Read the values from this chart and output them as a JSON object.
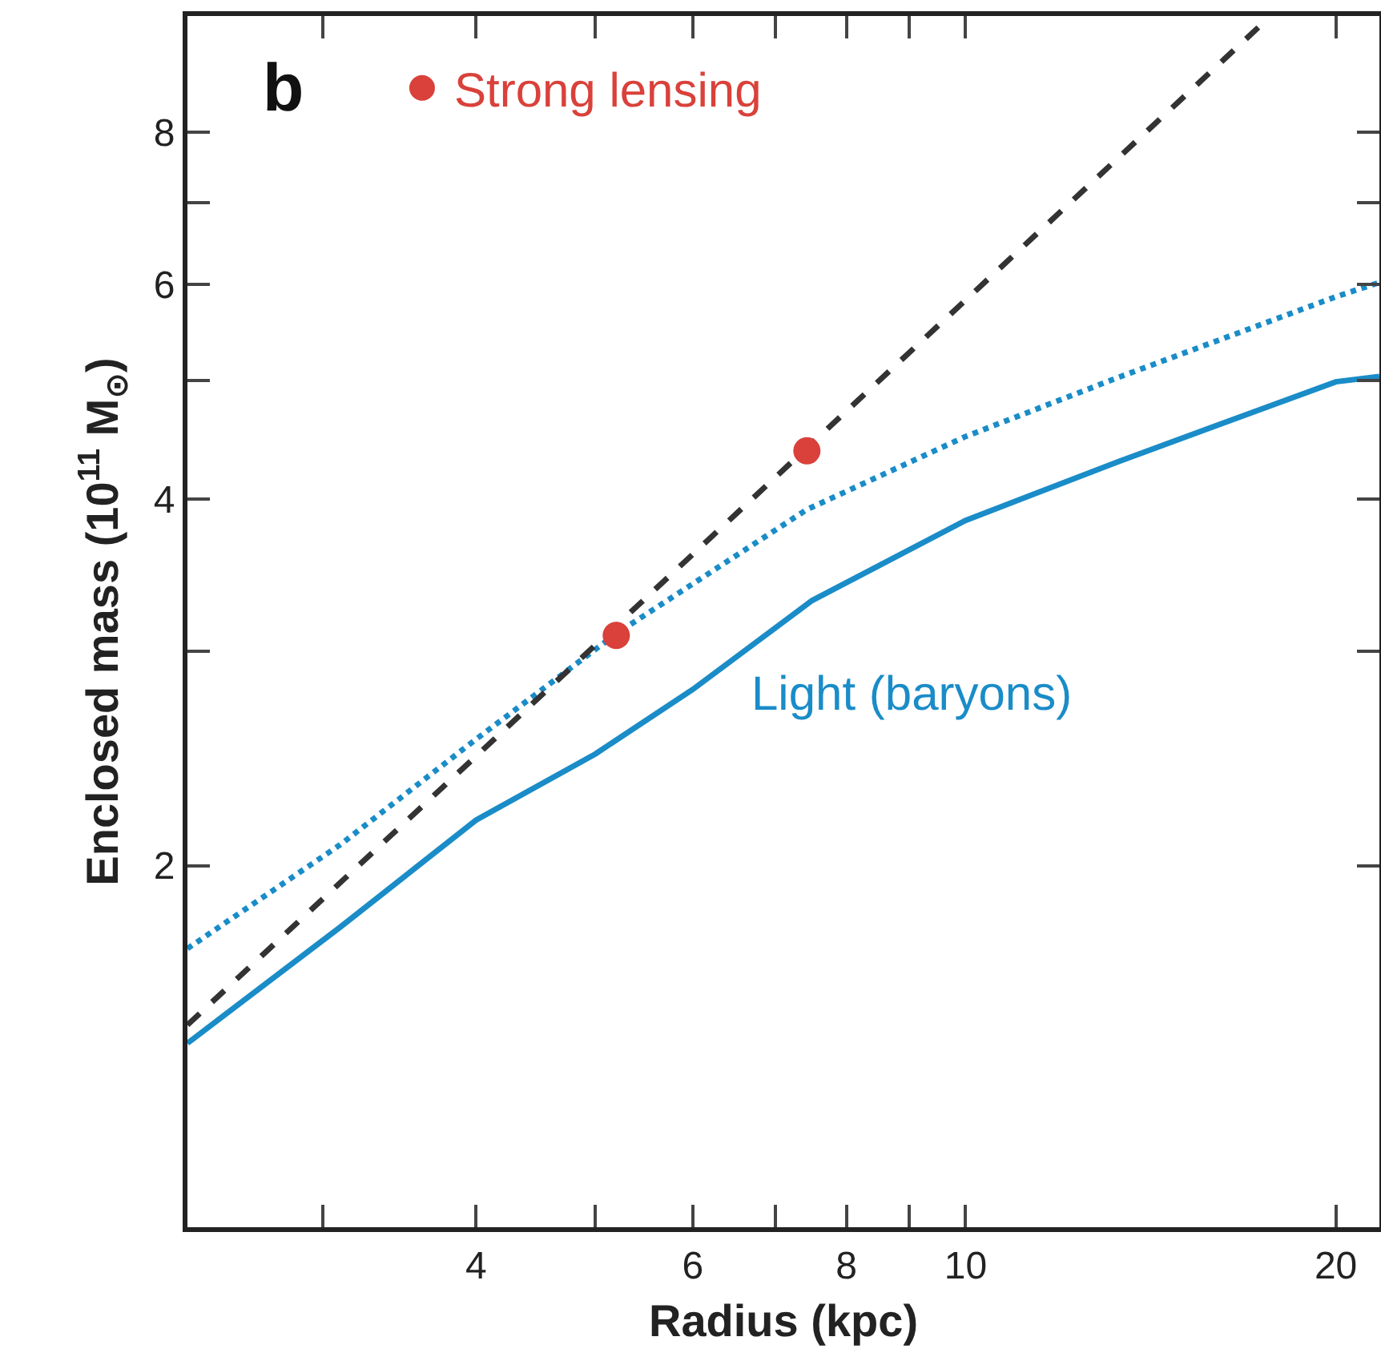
{
  "chart_data": {
    "type": "line",
    "xlabel": "Radius (kpc)",
    "ylabel": "Enclosed mass (10$^{11}$ M$_{⊙}$)",
    "log": "xy",
    "grid": false,
    "legend": "top left",
    "xlim": [
      2.33,
      21.7
    ],
    "ylim": [
      1.01,
      9.96
    ],
    "xticks": [
      {
        "value": 3,
        "label": null
      },
      4,
      {
        "value": 5,
        "label": null
      },
      6,
      {
        "value": 7,
        "label": null
      },
      8,
      {
        "value": 9,
        "label": null
      },
      10,
      20
    ],
    "yticks": [
      2,
      {
        "value": 3,
        "label": null
      },
      4,
      {
        "value": 5,
        "label": null
      },
      6,
      {
        "value": 7,
        "label": null
      },
      8
    ],
    "annotations": [
      "b"
    ],
    "series": [
      {
        "name": "Light (baryons)",
        "color": "#1a8cc8",
        "line_style": "solid",
        "marker": "none",
        "x": [
          2.33,
          3.1,
          4,
          5,
          6,
          7.5,
          10,
          13.3,
          20,
          21.7
        ],
        "values": [
          1.43,
          1.78,
          2.18,
          2.47,
          2.79,
          3.3,
          3.84,
          4.29,
          4.99,
          5.04
        ]
      },
      {
        "color": "#1a8cc8",
        "line_style": "dotted",
        "marker": "none",
        "x": [
          2.33,
          3.1,
          4,
          5.2,
          7.43,
          10,
          13.3,
          20,
          21.7
        ],
        "values": [
          1.71,
          2.08,
          2.54,
          3.1,
          3.92,
          4.5,
          5.03,
          5.86,
          6.02
        ]
      },
      {
        "color": "#333333",
        "line_style": "dashed",
        "marker": "none",
        "x": [
          2.33,
          17.7
        ],
        "values": [
          1.48,
          9.96
        ]
      },
      {
        "name": "Strong lensing",
        "type": "scatter",
        "color": "#d9413a",
        "marker": "circle",
        "x": [
          5.2,
          7.43
        ],
        "values": [
          3.09,
          4.38
        ]
      }
    ]
  }
}
